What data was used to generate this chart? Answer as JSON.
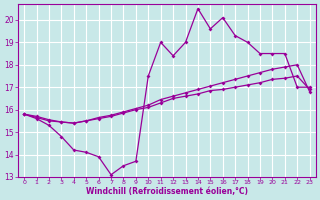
{
  "line1_x": [
    0,
    1,
    2,
    3,
    4,
    5,
    6,
    7,
    8,
    9,
    10,
    11,
    12,
    13,
    14,
    15,
    16,
    17,
    18,
    19,
    20,
    21,
    22,
    23
  ],
  "line1_y": [
    15.8,
    15.6,
    15.3,
    14.8,
    14.2,
    14.1,
    13.9,
    13.1,
    13.5,
    13.7,
    17.5,
    19.0,
    18.4,
    19.0,
    20.5,
    19.6,
    20.1,
    19.3,
    19.0,
    18.5,
    18.5,
    18.5,
    17.0,
    17.0
  ],
  "line2_x": [
    0,
    1,
    2,
    3,
    4,
    5,
    6,
    7,
    8,
    9,
    10,
    11,
    12,
    13,
    14,
    15,
    16,
    17,
    18,
    19,
    20,
    21,
    22,
    23
  ],
  "line2_y": [
    15.8,
    15.7,
    15.55,
    15.45,
    15.4,
    15.5,
    15.6,
    15.7,
    15.85,
    16.0,
    16.1,
    16.3,
    16.5,
    16.6,
    16.7,
    16.85,
    16.9,
    17.0,
    17.1,
    17.2,
    17.35,
    17.4,
    17.5,
    16.9
  ],
  "line3_x": [
    0,
    1,
    2,
    3,
    4,
    5,
    6,
    7,
    8,
    9,
    10,
    11,
    12,
    13,
    14,
    15,
    16,
    17,
    18,
    19,
    20,
    21,
    22,
    23
  ],
  "line3_y": [
    15.8,
    15.65,
    15.5,
    15.45,
    15.4,
    15.5,
    15.65,
    15.75,
    15.9,
    16.05,
    16.2,
    16.45,
    16.6,
    16.75,
    16.9,
    17.05,
    17.2,
    17.35,
    17.5,
    17.65,
    17.8,
    17.9,
    18.0,
    16.8
  ],
  "line_color": "#990099",
  "bg_color": "#c8e8e8",
  "grid_color": "#ffffff",
  "xlabel": "Windchill (Refroidissement éolien,°C)",
  "xlim": [
    0,
    23
  ],
  "ylim": [
    13,
    20.5
  ],
  "yticks": [
    13,
    14,
    15,
    16,
    17,
    18,
    19,
    20
  ],
  "xticks": [
    0,
    1,
    2,
    3,
    4,
    5,
    6,
    7,
    8,
    9,
    10,
    11,
    12,
    13,
    14,
    15,
    16,
    17,
    18,
    19,
    20,
    21,
    22,
    23
  ]
}
